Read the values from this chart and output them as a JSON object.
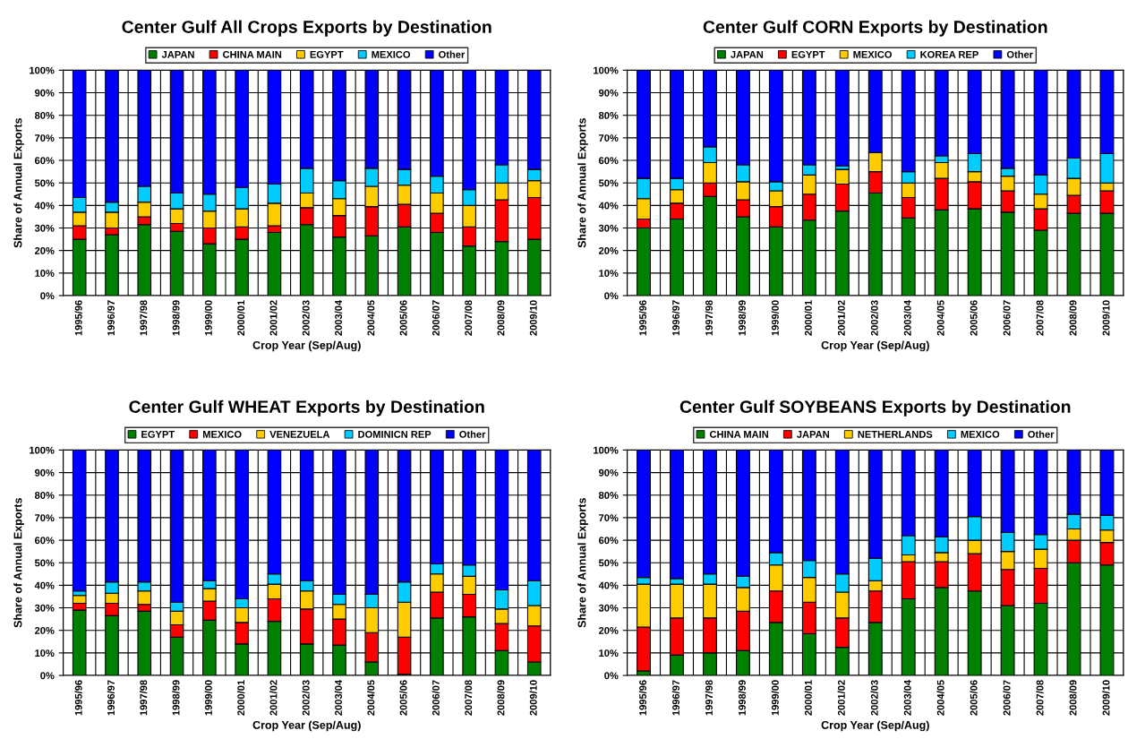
{
  "chart_data": [
    {
      "type": "bar",
      "stacked": true,
      "title": "Center Gulf All Crops Exports by Destination",
      "xlabel": "Crop Year (Sep/Aug)",
      "ylabel": "Share of Annual Exports",
      "legend": "top",
      "grid": true,
      "categories": [
        "1995/96",
        "1996/97",
        "1997/98",
        "1998/99",
        "1999/00",
        "2000/01",
        "2001/02",
        "2002/03",
        "2003/04",
        "2004/05",
        "2005/06",
        "2006/07",
        "2007/08",
        "2008/09",
        "2009/10"
      ],
      "ylim": [
        0,
        100
      ],
      "yticks": [
        {
          "value": 0,
          "label": "0%"
        },
        {
          "value": 10,
          "label": "10%"
        },
        {
          "value": 20,
          "label": "20%"
        },
        {
          "value": 30,
          "label": "30%"
        },
        {
          "value": 40,
          "label": "40%"
        },
        {
          "value": 50,
          "label": "50%"
        },
        {
          "value": 60,
          "label": "60%"
        },
        {
          "value": 70,
          "label": "70%"
        },
        {
          "value": 80,
          "label": "80%"
        },
        {
          "value": 90,
          "label": "90%"
        },
        {
          "value": 100,
          "label": "100%"
        }
      ],
      "series": [
        {
          "name": "JAPAN",
          "color": "#008000",
          "values": [
            25,
            27,
            31.5,
            28.5,
            23,
            25,
            28,
            31.5,
            26,
            26.5,
            30.5,
            28,
            22,
            24,
            25
          ]
        },
        {
          "name": "CHINA MAIN",
          "color": "#ff0000",
          "values": [
            6,
            3,
            3.5,
            3.5,
            7,
            5.5,
            3,
            7.5,
            9.5,
            13,
            10,
            8.5,
            8.5,
            18.5,
            18.5
          ]
        },
        {
          "name": "EGYPT",
          "color": "#ffcc00",
          "values": [
            6,
            7,
            6.5,
            6.5,
            7.5,
            8,
            10,
            6.5,
            7.5,
            9,
            8.5,
            9,
            9.5,
            7.5,
            7.5
          ]
        },
        {
          "name": "MEXICO",
          "color": "#00ccff",
          "values": [
            6.5,
            4.5,
            7,
            7,
            7.5,
            9.5,
            8.5,
            11,
            8,
            8,
            7,
            7.5,
            7,
            8,
            5
          ]
        },
        {
          "name": "Other",
          "color": "#0000ff",
          "values": [
            56.5,
            58.5,
            51.5,
            54.5,
            55,
            52,
            50.5,
            43.5,
            49,
            43.5,
            44,
            47,
            53,
            42,
            44
          ]
        }
      ]
    },
    {
      "type": "bar",
      "stacked": true,
      "title": "Center Gulf CORN Exports by Destination",
      "xlabel": "Crop Year (Sep/Aug)",
      "ylabel": "Share of Annual Exports",
      "legend": "top",
      "grid": true,
      "categories": [
        "1995/96",
        "1996/97",
        "1997/98",
        "1998/99",
        "1999/00",
        "2000/01",
        "2001/02",
        "2002/03",
        "2003/04",
        "2004/05",
        "2005/06",
        "2006/07",
        "2007/08",
        "2008/09",
        "2009/10"
      ],
      "ylim": [
        0,
        100
      ],
      "yticks": [
        {
          "value": 0,
          "label": "0%"
        },
        {
          "value": 10,
          "label": "10%"
        },
        {
          "value": 20,
          "label": "20%"
        },
        {
          "value": 30,
          "label": "30%"
        },
        {
          "value": 40,
          "label": "40%"
        },
        {
          "value": 50,
          "label": "50%"
        },
        {
          "value": 60,
          "label": "60%"
        },
        {
          "value": 70,
          "label": "70%"
        },
        {
          "value": 80,
          "label": "80%"
        },
        {
          "value": 90,
          "label": "90%"
        },
        {
          "value": 100,
          "label": "100%"
        }
      ],
      "series": [
        {
          "name": "JAPAN",
          "color": "#008000",
          "values": [
            30,
            34,
            44,
            35,
            30.5,
            33.5,
            37.5,
            45.5,
            34.5,
            38,
            38.5,
            37,
            29,
            36.5,
            36.5
          ]
        },
        {
          "name": "EGYPT",
          "color": "#ff0000",
          "values": [
            4,
            7,
            6,
            7.5,
            9,
            11.5,
            12,
            9.5,
            9,
            14,
            12,
            9.5,
            9.5,
            8,
            10
          ]
        },
        {
          "name": "MEXICO",
          "color": "#ffcc00",
          "values": [
            9,
            6,
            9,
            8,
            7,
            8.5,
            6.5,
            8.5,
            6.5,
            7,
            4.5,
            6.5,
            6.5,
            7.5,
            3.5
          ]
        },
        {
          "name": "KOREA REP",
          "color": "#00ccff",
          "values": [
            9,
            5,
            7,
            7.5,
            4,
            4.5,
            1.5,
            0,
            5,
            3,
            8,
            3.5,
            8.5,
            9,
            13
          ]
        },
        {
          "name": "Other",
          "color": "#0000ff",
          "values": [
            48,
            48,
            34,
            42,
            49.5,
            42,
            42.5,
            36.5,
            45,
            38,
            37,
            43.5,
            46.5,
            39,
            37
          ]
        }
      ]
    },
    {
      "type": "bar",
      "stacked": true,
      "title": "Center Gulf WHEAT Exports by Destination",
      "xlabel": "Crop Year (Sep/Aug)",
      "ylabel": "Share of Annual Exports",
      "legend": "top",
      "grid": true,
      "categories": [
        "1995/96",
        "1996/97",
        "1997/98",
        "1998/99",
        "1999/00",
        "2000/01",
        "2001/02",
        "2002/03",
        "2003/04",
        "2004/05",
        "2005/06",
        "2006/07",
        "2007/08",
        "2008/09",
        "2009/10"
      ],
      "ylim": [
        0,
        100
      ],
      "yticks": [
        {
          "value": 0,
          "label": "0%"
        },
        {
          "value": 10,
          "label": "10%"
        },
        {
          "value": 20,
          "label": "20%"
        },
        {
          "value": 30,
          "label": "30%"
        },
        {
          "value": 40,
          "label": "40%"
        },
        {
          "value": 50,
          "label": "50%"
        },
        {
          "value": 60,
          "label": "60%"
        },
        {
          "value": 70,
          "label": "70%"
        },
        {
          "value": 80,
          "label": "80%"
        },
        {
          "value": 90,
          "label": "90%"
        },
        {
          "value": 100,
          "label": "100%"
        }
      ],
      "series": [
        {
          "name": "EGYPT",
          "color": "#008000",
          "values": [
            29,
            26.5,
            28.5,
            17,
            24.5,
            14,
            24,
            14,
            13.5,
            6,
            0.5,
            25.5,
            26,
            11,
            6
          ]
        },
        {
          "name": "MEXICO",
          "color": "#ff0000",
          "values": [
            3,
            5.5,
            3,
            5.5,
            8.5,
            9.5,
            10,
            15.5,
            11.5,
            13,
            16.5,
            11.5,
            10,
            12,
            16
          ]
        },
        {
          "name": "VENEZUELA",
          "color": "#ffcc00",
          "values": [
            3.5,
            4.5,
            6,
            6,
            5.5,
            6.5,
            6.5,
            8,
            6.5,
            11,
            15.5,
            8,
            8,
            6.5,
            9
          ]
        },
        {
          "name": "DOMINICN REP",
          "color": "#00ccff",
          "values": [
            2,
            5,
            4,
            4,
            3.5,
            4,
            4.5,
            4.5,
            4.5,
            6,
            9,
            4.5,
            5,
            8.5,
            11
          ]
        },
        {
          "name": "Other",
          "color": "#0000ff",
          "values": [
            62.5,
            58.5,
            58.5,
            67.5,
            58,
            66,
            55,
            58,
            64,
            64,
            58.5,
            50.5,
            51,
            62,
            58
          ]
        }
      ]
    },
    {
      "type": "bar",
      "stacked": true,
      "title": "Center Gulf SOYBEANS Exports by Destination",
      "xlabel": "Crop Year (Sep/Aug)",
      "ylabel": "Share of Annual Exports",
      "legend": "top",
      "grid": true,
      "categories": [
        "1995/96",
        "1996/97",
        "1997/98",
        "1998/99",
        "1999/00",
        "2000/01",
        "2001/02",
        "2002/03",
        "2003/04",
        "2004/05",
        "2005/06",
        "2006/07",
        "2007/08",
        "2008/09",
        "2009/10"
      ],
      "ylim": [
        0,
        100
      ],
      "yticks": [
        {
          "value": 0,
          "label": "0%"
        },
        {
          "value": 10,
          "label": "10%"
        },
        {
          "value": 20,
          "label": "20%"
        },
        {
          "value": 30,
          "label": "30%"
        },
        {
          "value": 40,
          "label": "40%"
        },
        {
          "value": 50,
          "label": "50%"
        },
        {
          "value": 60,
          "label": "60%"
        },
        {
          "value": 70,
          "label": "70%"
        },
        {
          "value": 80,
          "label": "80%"
        },
        {
          "value": 90,
          "label": "90%"
        },
        {
          "value": 100,
          "label": "100%"
        }
      ],
      "series": [
        {
          "name": "CHINA MAIN",
          "color": "#008000",
          "values": [
            2,
            9,
            10,
            11,
            23.5,
            18.5,
            12.5,
            23.5,
            34,
            39,
            37.5,
            31,
            32,
            50,
            49
          ]
        },
        {
          "name": "JAPAN",
          "color": "#ff0000",
          "values": [
            19.5,
            16.5,
            15.5,
            17.5,
            14,
            14,
            13,
            14,
            16.5,
            11.5,
            16.5,
            16,
            15.5,
            10,
            10
          ]
        },
        {
          "name": "NETHERLANDS",
          "color": "#ffcc00",
          "values": [
            19,
            15,
            15,
            10.5,
            11.5,
            11,
            11.5,
            4.5,
            3,
            4,
            6,
            8,
            8.5,
            5,
            5.5
          ]
        },
        {
          "name": "MEXICO",
          "color": "#00ccff",
          "values": [
            3,
            2.5,
            4.5,
            5,
            5.5,
            7.5,
            8,
            10,
            8.5,
            7,
            10.5,
            8.5,
            6.5,
            6.5,
            6.5
          ]
        },
        {
          "name": "Other",
          "color": "#0000ff",
          "values": [
            56.5,
            57,
            55,
            56,
            45.5,
            49,
            55,
            48,
            38,
            38.5,
            29.5,
            36.5,
            37.5,
            28.5,
            29
          ]
        }
      ]
    }
  ]
}
